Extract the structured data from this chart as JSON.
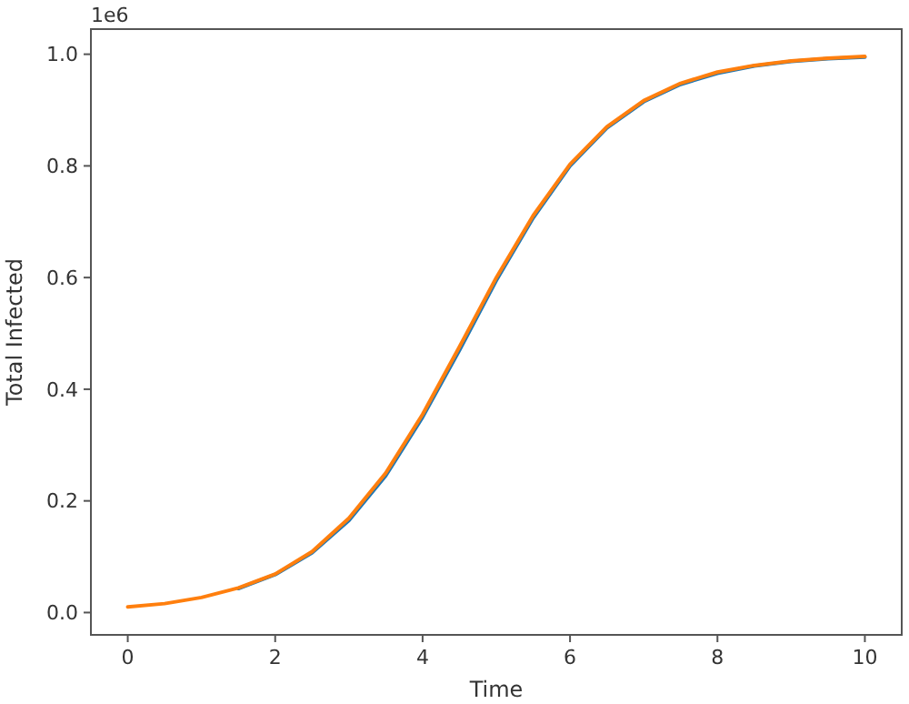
{
  "chart_data": {
    "type": "line",
    "xlabel": "Time",
    "ylabel": "Total Infected",
    "annotations": [
      "1e6"
    ],
    "x": [
      0,
      0.5,
      1,
      1.5,
      2,
      2.5,
      3,
      3.5,
      4,
      4.5,
      5,
      5.5,
      6,
      6.5,
      7,
      7.5,
      8,
      8.5,
      9,
      9.5,
      10
    ],
    "series": [
      {
        "color": "#1f77b4",
        "values": [
          null,
          null,
          null,
          0.043,
          0.068,
          0.107,
          0.165,
          0.245,
          0.35,
          0.47,
          0.595,
          0.707,
          0.8,
          0.868,
          0.915,
          0.946,
          0.966,
          0.979,
          0.987,
          0.992,
          0.995
        ]
      },
      {
        "color": "#ff7f0e",
        "values": [
          0.01,
          0.016,
          0.027,
          0.044,
          0.069,
          0.109,
          0.169,
          0.25,
          0.355,
          0.476,
          0.6,
          0.711,
          0.803,
          0.87,
          0.917,
          0.948,
          0.968,
          0.98,
          0.988,
          0.993,
          0.996
        ]
      }
    ],
    "xlim": [
      -0.5,
      10.5
    ],
    "ylim": [
      -0.04,
      1.045
    ],
    "xticks": [
      0,
      2,
      4,
      6,
      8,
      10
    ],
    "yticks": [
      {
        "value": 0,
        "label": "0.0"
      },
      {
        "value": 0.2,
        "label": "0.2"
      },
      {
        "value": 0.4,
        "label": "0.4"
      },
      {
        "value": 0.6,
        "label": "0.6"
      },
      {
        "value": 0.8,
        "label": "0.8"
      },
      {
        "value": 1,
        "label": "1.0"
      }
    ],
    "grid": false,
    "marker": "none",
    "line_style": "solid"
  }
}
